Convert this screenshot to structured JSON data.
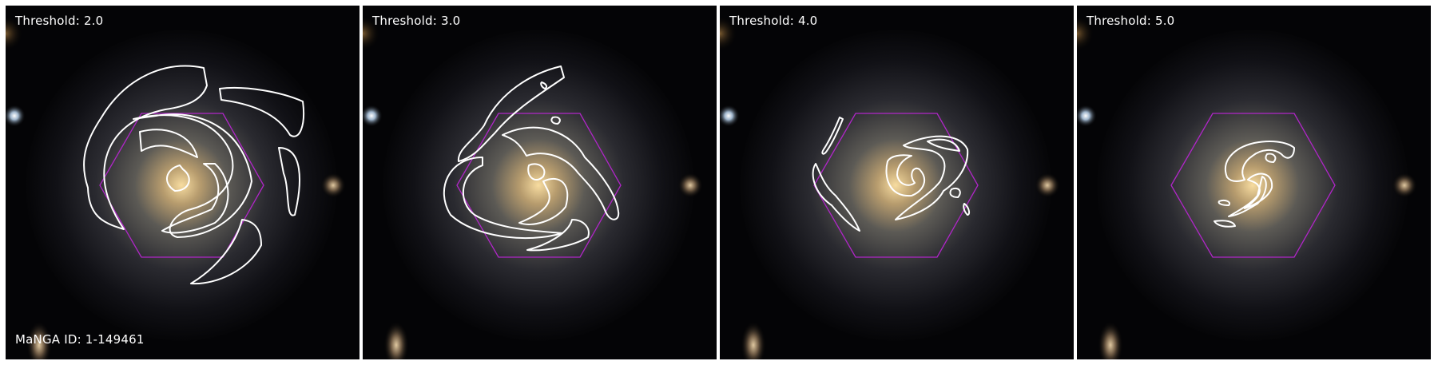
{
  "galaxy": {
    "manga_id_label": "MaNGA ID: 1-149461"
  },
  "panels": [
    {
      "title": "Threshold: 2.0"
    },
    {
      "title": "Threshold: 3.0"
    },
    {
      "title": "Threshold: 4.0"
    },
    {
      "title": "Threshold: 5.0"
    }
  ],
  "colors": {
    "contour": "#ffffff",
    "ifu_hexagon": "#b026c8",
    "background": "#000000"
  }
}
